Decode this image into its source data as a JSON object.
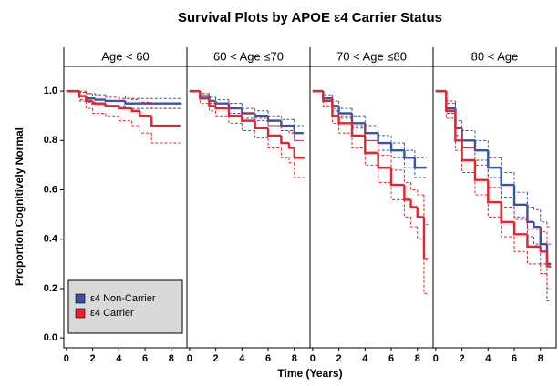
{
  "title": "Survival Plots by APOE ε4 Carrier Status",
  "x_label": "Time (Years)",
  "y_label": "Proportion Cognitively Normal",
  "chart_data": [
    {
      "type": "step",
      "title": "Age < 60",
      "legend": "lower left",
      "xlim": [
        -0.2,
        9.2
      ],
      "xticks": [
        0,
        2,
        4,
        6,
        8
      ],
      "ylim": [
        -0.04,
        1.1
      ],
      "yticks": [
        {
          "value": 0,
          "label": "0.0"
        },
        0.2,
        0.4,
        0.6,
        0.8,
        {
          "value": 1,
          "label": "1.0"
        }
      ],
      "series": [
        {
          "name": "ε4 Non-Carrier",
          "color": "#3a53a4",
          "x": [
            0,
            1,
            1.5,
            2.2,
            3,
            4.5,
            8.8
          ],
          "values": [
            1,
            0.98,
            0.97,
            0.965,
            0.96,
            0.95,
            0.95
          ],
          "lower": [
            1,
            0.965,
            0.955,
            0.945,
            0.94,
            0.93,
            0.93
          ],
          "upper": [
            1,
            0.995,
            0.99,
            0.985,
            0.98,
            0.97,
            0.97
          ]
        },
        {
          "name": "ε4 Carrier",
          "color": "#e8242a",
          "x": [
            0,
            1,
            1.5,
            2,
            3,
            4,
            5,
            5.6,
            6.5,
            8.7
          ],
          "values": [
            1,
            0.98,
            0.96,
            0.95,
            0.94,
            0.93,
            0.92,
            0.9,
            0.86,
            0.86
          ],
          "lower": [
            1,
            0.96,
            0.93,
            0.91,
            0.9,
            0.88,
            0.86,
            0.83,
            0.79,
            0.79
          ],
          "upper": [
            1,
            1,
            0.99,
            0.98,
            0.975,
            0.97,
            0.965,
            0.955,
            0.93,
            0.93
          ]
        }
      ]
    },
    {
      "type": "step",
      "title": "60 < Age  ≤70",
      "xlim": [
        -0.2,
        9.2
      ],
      "xticks": [
        0,
        2,
        4,
        6,
        8
      ],
      "ylim": [
        -0.04,
        1.1
      ],
      "series": [
        {
          "color": "#3a53a4",
          "x": [
            0,
            0.8,
            1.5,
            2,
            3,
            4,
            5,
            6,
            7,
            8,
            8.7
          ],
          "values": [
            1,
            0.98,
            0.96,
            0.95,
            0.93,
            0.91,
            0.9,
            0.88,
            0.86,
            0.83,
            0.83
          ],
          "lower": [
            1,
            0.97,
            0.95,
            0.93,
            0.91,
            0.89,
            0.88,
            0.86,
            0.84,
            0.8,
            0.8
          ],
          "upper": [
            1,
            0.99,
            0.975,
            0.965,
            0.95,
            0.93,
            0.92,
            0.9,
            0.885,
            0.86,
            0.86
          ]
        },
        {
          "color": "#e8242a",
          "x": [
            0,
            0.8,
            1.5,
            2,
            3,
            4,
            5,
            6,
            7,
            7.6,
            8,
            8.8
          ],
          "values": [
            1,
            0.97,
            0.94,
            0.93,
            0.9,
            0.88,
            0.85,
            0.82,
            0.79,
            0.77,
            0.73,
            0.73
          ],
          "lower": [
            1,
            0.95,
            0.92,
            0.9,
            0.87,
            0.84,
            0.81,
            0.77,
            0.73,
            0.71,
            0.65,
            0.65
          ],
          "upper": [
            1,
            0.99,
            0.96,
            0.95,
            0.93,
            0.91,
            0.89,
            0.86,
            0.84,
            0.83,
            0.8,
            0.8
          ]
        }
      ]
    },
    {
      "type": "step",
      "title": "70 < Age  ≤80",
      "xlim": [
        -0.2,
        9.2
      ],
      "xticks": [
        0,
        2,
        4,
        6,
        8
      ],
      "ylim": [
        -0.04,
        1.1
      ],
      "series": [
        {
          "color": "#3a53a4",
          "x": [
            0,
            0.8,
            1.5,
            2,
            3,
            4,
            5,
            6,
            7,
            7.8,
            8.7
          ],
          "values": [
            1,
            0.97,
            0.94,
            0.91,
            0.87,
            0.83,
            0.79,
            0.76,
            0.73,
            0.69,
            0.69
          ],
          "lower": [
            1,
            0.96,
            0.92,
            0.89,
            0.85,
            0.8,
            0.76,
            0.73,
            0.69,
            0.65,
            0.65
          ],
          "upper": [
            1,
            0.985,
            0.96,
            0.93,
            0.9,
            0.86,
            0.82,
            0.79,
            0.76,
            0.73,
            0.73
          ]
        },
        {
          "color": "#e8242a",
          "x": [
            0,
            0.8,
            1.5,
            2,
            3,
            4,
            5,
            6,
            7,
            7.5,
            8,
            8.5,
            8.8
          ],
          "values": [
            1,
            0.96,
            0.9,
            0.87,
            0.82,
            0.75,
            0.69,
            0.62,
            0.56,
            0.53,
            0.49,
            0.32,
            0.32
          ],
          "lower": [
            1,
            0.94,
            0.87,
            0.83,
            0.77,
            0.7,
            0.63,
            0.56,
            0.49,
            0.45,
            0.4,
            0.18,
            0.18
          ],
          "upper": [
            1,
            0.98,
            0.93,
            0.9,
            0.86,
            0.8,
            0.74,
            0.68,
            0.63,
            0.6,
            0.58,
            0.46,
            0.46
          ]
        }
      ]
    },
    {
      "type": "step",
      "title": "80 < Age",
      "xlim": [
        -0.2,
        9.2
      ],
      "xticks": [
        0,
        2,
        4,
        6,
        8
      ],
      "ylim": [
        -0.04,
        1.1
      ],
      "series": [
        {
          "color": "#3a53a4",
          "x": [
            0,
            0.8,
            1.5,
            2,
            3,
            4,
            5,
            6,
            7,
            7.5,
            8,
            8.5,
            8.8
          ],
          "values": [
            1,
            0.93,
            0.85,
            0.8,
            0.76,
            0.69,
            0.62,
            0.54,
            0.47,
            0.45,
            0.38,
            0.3,
            0.3
          ],
          "lower": [
            1,
            0.91,
            0.82,
            0.77,
            0.72,
            0.65,
            0.57,
            0.49,
            0.41,
            0.38,
            0.3,
            0.15,
            0.15
          ],
          "upper": [
            1,
            0.96,
            0.88,
            0.84,
            0.8,
            0.73,
            0.67,
            0.59,
            0.53,
            0.52,
            0.47,
            0.45,
            0.45
          ]
        },
        {
          "color": "#e8242a",
          "x": [
            0,
            0.8,
            1.5,
            2,
            3,
            4,
            5,
            6,
            7,
            8,
            8.5,
            8.8
          ],
          "values": [
            1,
            0.92,
            0.8,
            0.72,
            0.64,
            0.55,
            0.47,
            0.42,
            0.37,
            0.35,
            0.29,
            0.29
          ],
          "lower": [
            1,
            0.89,
            0.76,
            0.67,
            0.58,
            0.49,
            0.41,
            0.35,
            0.3,
            0.26,
            0.2,
            0.2
          ],
          "upper": [
            1,
            0.95,
            0.85,
            0.77,
            0.7,
            0.61,
            0.53,
            0.48,
            0.44,
            0.43,
            0.38,
            0.38
          ]
        }
      ]
    }
  ]
}
